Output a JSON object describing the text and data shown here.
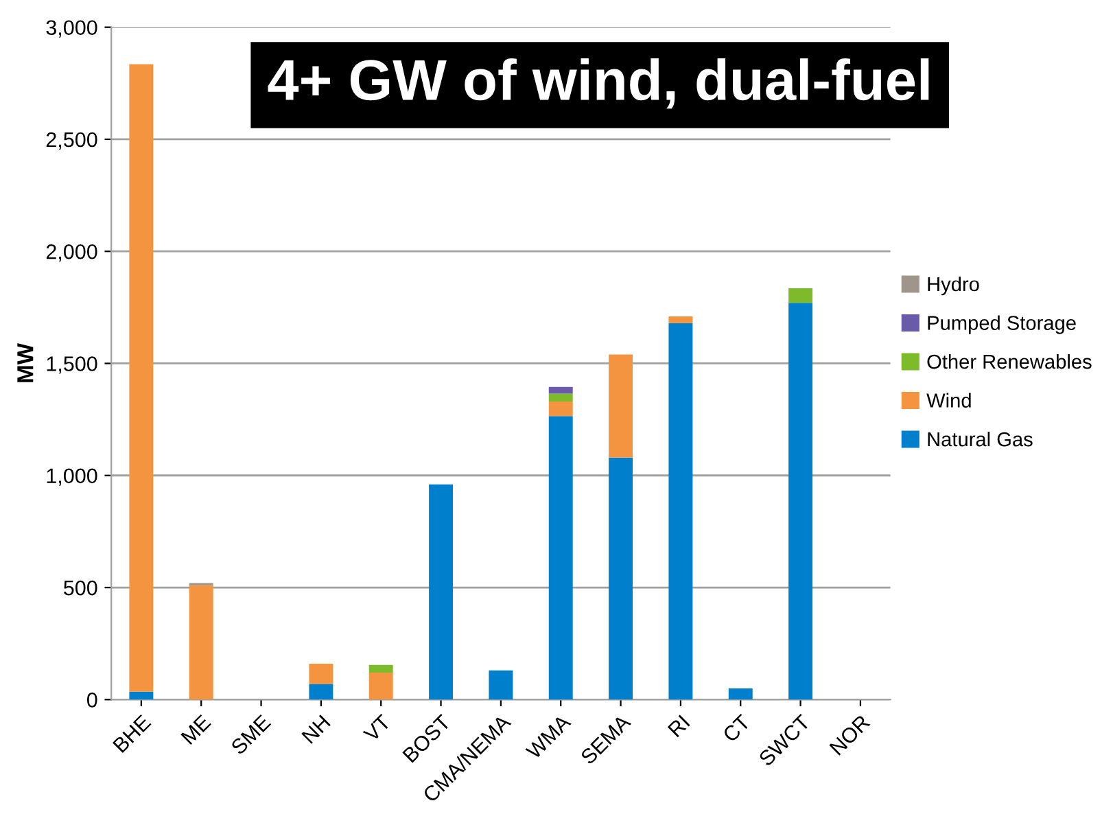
{
  "chart_data": {
    "type": "bar",
    "stacked": true,
    "title": "4+ GW of wind, dual-fuel",
    "ylabel": "MW",
    "categories": [
      "BHE",
      "ME",
      "SME",
      "NH",
      "VT",
      "BOST",
      "CMA/NEMA",
      "WMA",
      "SEMA",
      "RI",
      "CT",
      "SWCT",
      "NOR"
    ],
    "series": [
      {
        "name": "Natural Gas",
        "color": "#0080cc",
        "values": [
          35,
          0,
          0,
          70,
          0,
          960,
          130,
          1265,
          1080,
          1680,
          50,
          1770,
          0
        ]
      },
      {
        "name": "Wind",
        "color": "#f59440",
        "values": [
          2800,
          510,
          0,
          90,
          120,
          0,
          0,
          65,
          460,
          30,
          0,
          0,
          0
        ]
      },
      {
        "name": "Other Renewables",
        "color": "#7dbb2a",
        "values": [
          0,
          0,
          0,
          0,
          35,
          0,
          0,
          35,
          0,
          0,
          0,
          65,
          0
        ]
      },
      {
        "name": "Pumped Storage",
        "color": "#6a5aaa",
        "values": [
          0,
          0,
          0,
          0,
          0,
          0,
          0,
          30,
          0,
          0,
          0,
          0,
          0
        ]
      },
      {
        "name": "Hydro",
        "color": "#a0958a",
        "values": [
          0,
          10,
          0,
          0,
          0,
          0,
          0,
          0,
          0,
          0,
          0,
          0,
          0
        ]
      }
    ],
    "ylim": [
      0,
      3000
    ],
    "yticks": [
      {
        "value": 0,
        "label": "0"
      },
      {
        "value": 500,
        "label": "500"
      },
      {
        "value": 1000,
        "label": "1,000"
      },
      {
        "value": 1500,
        "label": "1,500"
      },
      {
        "value": 2000,
        "label": "2,000"
      },
      {
        "value": 2500,
        "label": "2,500"
      },
      {
        "value": 3000,
        "label": "3,000"
      }
    ],
    "grid": "y",
    "legend": "right"
  }
}
